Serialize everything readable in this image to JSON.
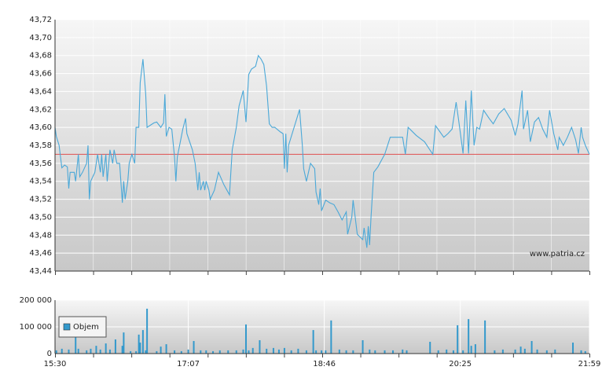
{
  "chart_data": [
    {
      "type": "line",
      "x": [
        "15:30",
        "15:31",
        "15:33",
        "15:35",
        "15:37",
        "15:39",
        "15:40",
        "15:41",
        "15:44",
        "15:45",
        "15:47",
        "15:48",
        "15:50",
        "15:53",
        "15:54",
        "15:55",
        "15:56",
        "15:59",
        "16:01",
        "16:03",
        "16:04",
        "16:05",
        "16:07",
        "16:08",
        "16:10",
        "16:12",
        "16:13",
        "16:15",
        "16:17",
        "16:19",
        "16:20",
        "16:21",
        "16:23",
        "16:24",
        "16:26",
        "16:28",
        "16:29",
        "16:31",
        "16:32",
        "16:34",
        "16:36",
        "16:37",
        "16:42",
        "16:44",
        "16:47",
        "16:49",
        "16:50",
        "16:51",
        "16:53",
        "16:55",
        "16:57",
        "16:58",
        "16:59",
        "17:02",
        "17:03",
        "17:05",
        "17:06",
        "17:10",
        "17:12",
        "17:14",
        "17:15",
        "17:16",
        "17:18",
        "17:19",
        "17:20",
        "17:22",
        "17:23",
        "17:26",
        "17:29",
        "17:33",
        "17:37",
        "17:39",
        "17:42",
        "17:44",
        "17:47",
        "17:49",
        "17:51",
        "17:53",
        "17:56",
        "17:58",
        "18:00",
        "18:02",
        "18:04",
        "18:06",
        "18:08",
        "18:10",
        "18:14",
        "18:16",
        "18:17",
        "18:18",
        "18:19",
        "18:20",
        "18:24",
        "18:28",
        "18:30",
        "18:31",
        "18:33",
        "18:36",
        "18:39",
        "18:40",
        "18:42",
        "18:43",
        "18:44",
        "18:47",
        "18:50",
        "18:53",
        "18:56",
        "18:59",
        "19:02",
        "19:03",
        "19:06",
        "19:07",
        "19:10",
        "19:12",
        "19:14",
        "19:15",
        "19:17",
        "19:18",
        "19:19",
        "19:20",
        "19:22",
        "19:25",
        "19:30",
        "19:34",
        "19:38",
        "19:43",
        "19:45",
        "19:47",
        "19:53",
        "19:59",
        "20:05",
        "20:07",
        "20:13",
        "20:16",
        "20:19",
        "20:22",
        "20:24",
        "20:27",
        "20:29",
        "20:31",
        "20:33",
        "20:35",
        "20:37",
        "20:39",
        "20:42",
        "20:46",
        "20:49",
        "20:53",
        "20:57",
        "21:02",
        "21:05",
        "21:07",
        "21:10",
        "21:11",
        "21:14",
        "21:16",
        "21:19",
        "21:22",
        "21:25",
        "21:28",
        "21:30",
        "21:33",
        "21:36",
        "21:37",
        "21:40",
        "21:43",
        "21:46",
        "21:49",
        "21:51",
        "21:53",
        "21:54",
        "21:56",
        "21:59"
      ],
      "values": [
        43.6,
        43.59,
        43.58,
        43.555,
        43.558,
        43.556,
        43.532,
        43.55,
        43.55,
        43.54,
        43.57,
        43.545,
        43.55,
        43.56,
        43.58,
        43.52,
        43.54,
        43.55,
        43.57,
        43.55,
        43.57,
        43.545,
        43.57,
        43.54,
        43.575,
        43.56,
        43.575,
        43.56,
        43.56,
        43.516,
        43.54,
        43.52,
        43.54,
        43.56,
        43.57,
        43.56,
        43.6,
        43.6,
        43.65,
        43.676,
        43.637,
        43.6,
        43.605,
        43.606,
        43.6,
        43.605,
        43.637,
        43.59,
        43.6,
        43.598,
        43.567,
        43.54,
        43.567,
        43.59,
        43.598,
        43.61,
        43.593,
        43.575,
        43.56,
        43.53,
        43.55,
        43.53,
        43.54,
        43.53,
        43.54,
        43.53,
        43.52,
        43.53,
        43.55,
        43.536,
        43.525,
        43.575,
        43.6,
        43.624,
        43.641,
        43.606,
        43.659,
        43.665,
        43.668,
        43.68,
        43.676,
        43.67,
        43.646,
        43.604,
        43.6,
        43.6,
        43.595,
        43.593,
        43.554,
        43.593,
        43.55,
        43.58,
        43.6,
        43.62,
        43.58,
        43.554,
        43.54,
        43.56,
        43.554,
        43.528,
        43.514,
        43.532,
        43.507,
        43.519,
        43.516,
        43.514,
        43.506,
        43.497,
        43.506,
        43.481,
        43.5,
        43.519,
        43.481,
        43.478,
        43.475,
        43.488,
        43.466,
        43.49,
        43.469,
        43.5,
        43.55,
        43.556,
        43.57,
        43.589,
        43.589,
        43.589,
        43.57,
        43.6,
        43.591,
        43.584,
        43.57,
        43.602,
        43.589,
        43.593,
        43.598,
        43.628,
        43.606,
        43.571,
        43.63,
        43.571,
        43.641,
        43.58,
        43.6,
        43.598,
        43.619,
        43.61,
        43.604,
        43.615,
        43.621,
        43.608,
        43.591,
        43.604,
        43.641,
        43.598,
        43.619,
        43.584,
        43.606,
        43.611,
        43.598,
        43.589,
        43.619,
        43.593,
        43.575,
        43.589,
        43.58,
        43.589,
        43.6,
        43.586,
        43.571,
        43.6,
        43.589,
        43.58,
        43.57
      ],
      "color": "#4aa8d8",
      "xlim": [
        "15:30",
        "21:59"
      ],
      "ylim": [
        43.44,
        43.72
      ],
      "yticks": [
        {
          "value": 43.44,
          "label": "43,44"
        },
        {
          "value": 43.46,
          "label": "43,46"
        },
        {
          "value": 43.48,
          "label": "43,48"
        },
        {
          "value": 43.5,
          "label": "43,50"
        },
        {
          "value": 43.52,
          "label": "43,52"
        },
        {
          "value": 43.54,
          "label": "43,54"
        },
        {
          "value": 43.56,
          "label": "43,56"
        },
        {
          "value": 43.58,
          "label": "43,58"
        },
        {
          "value": 43.6,
          "label": "43,60"
        },
        {
          "value": 43.62,
          "label": "43,62"
        },
        {
          "value": 43.64,
          "label": "43,64"
        },
        {
          "value": 43.66,
          "label": "43,66"
        },
        {
          "value": 43.68,
          "label": "43,68"
        },
        {
          "value": 43.7,
          "label": "43,70"
        },
        {
          "value": 43.72,
          "label": "43,72"
        }
      ],
      "reference_line": 43.57,
      "reference_color": "#e06060",
      "watermark": "www.patria.cz",
      "grid": true
    },
    {
      "type": "bar",
      "x": [
        "15:31",
        "15:35",
        "15:40",
        "15:45",
        "15:47",
        "15:53",
        "15:56",
        "16:00",
        "16:03",
        "16:07",
        "16:10",
        "16:14",
        "16:19",
        "16:20",
        "16:25",
        "16:29",
        "16:31",
        "16:32",
        "16:34",
        "16:36",
        "16:37",
        "16:44",
        "16:47",
        "16:51",
        "16:57",
        "17:02",
        "17:07",
        "17:11",
        "17:16",
        "17:20",
        "17:25",
        "17:30",
        "17:36",
        "17:42",
        "17:47",
        "17:49",
        "17:51",
        "17:54",
        "17:59",
        "18:04",
        "18:09",
        "18:13",
        "18:17",
        "18:22",
        "18:27",
        "18:33",
        "18:38",
        "18:40",
        "18:44",
        "18:47",
        "18:51",
        "18:57",
        "19:02",
        "19:07",
        "19:14",
        "19:19",
        "19:23",
        "19:30",
        "19:36",
        "19:43",
        "19:46",
        "20:03",
        "20:09",
        "20:15",
        "20:20",
        "20:23",
        "20:27",
        "20:31",
        "20:33",
        "20:36",
        "20:43",
        "20:50",
        "20:56",
        "21:05",
        "21:09",
        "21:12",
        "21:17",
        "21:21",
        "21:28",
        "21:34",
        "21:47",
        "21:53",
        "21:56"
      ],
      "series": [
        {
          "name": "Objem",
          "color": "#3399cc",
          "values": [
            12000,
            18000,
            15000,
            65000,
            18000,
            12000,
            18000,
            29000,
            15000,
            38000,
            15000,
            53000,
            29000,
            79000,
            9000,
            9000,
            71000,
            41000,
            88000,
            12000,
            168000,
            9000,
            26000,
            35000,
            12000,
            9000,
            15000,
            47000,
            12000,
            12000,
            9000,
            12000,
            12000,
            12000,
            15000,
            109000,
            12000,
            21000,
            50000,
            18000,
            21000,
            15000,
            21000,
            12000,
            18000,
            12000,
            88000,
            12000,
            12000,
            12000,
            124000,
            15000,
            12000,
            12000,
            50000,
            15000,
            12000,
            12000,
            12000,
            15000,
            12000,
            44000,
            12000,
            15000,
            12000,
            106000,
            12000,
            129000,
            29000,
            35000,
            124000,
            12000,
            15000,
            15000,
            26000,
            18000,
            47000,
            15000,
            12000,
            15000,
            41000,
            12000,
            9000
          ]
        }
      ],
      "xlim": [
        "15:30",
        "21:59"
      ],
      "xticks": [
        "15:30",
        "17:07",
        "18:46",
        "20:25",
        "21:59"
      ],
      "ylim": [
        0,
        200000
      ],
      "yticks": [
        0,
        {
          "value": 100000,
          "label": "100 000"
        },
        {
          "value": 200000,
          "label": "200 000"
        }
      ],
      "legend": "left",
      "grid": true
    }
  ]
}
